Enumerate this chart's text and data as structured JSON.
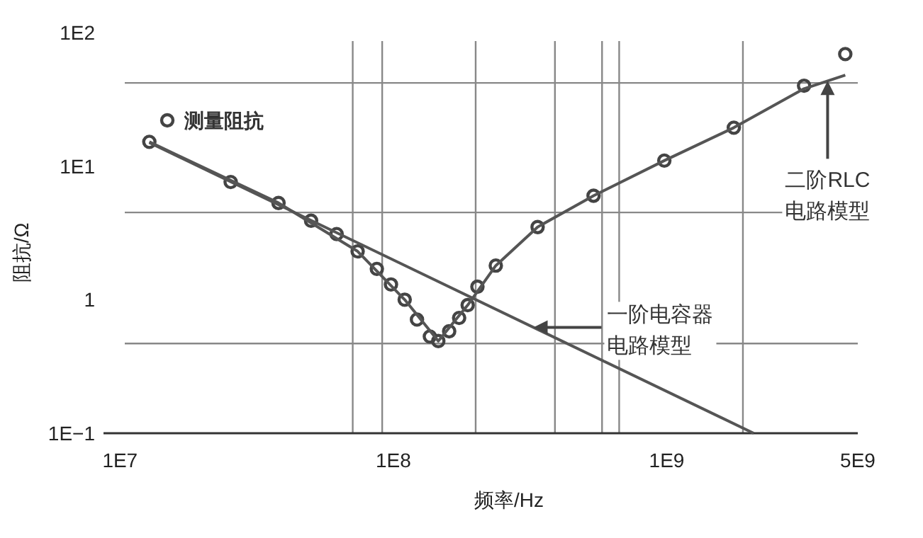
{
  "chart_data": {
    "type": "scatter",
    "xlabel": "频率/Hz",
    "ylabel": "阻抗/Ω",
    "log": "xy",
    "xlim": [
      8700000,
      5000000000
    ],
    "xticks": [
      {
        "value": 10000000,
        "label": "1E7"
      },
      {
        "value": 100000000,
        "label": "1E8"
      },
      {
        "value": 1000000000,
        "label": "1E9"
      },
      {
        "value": 5000000000,
        "label": "5E9"
      }
    ],
    "ylim": [
      0.1,
      100
    ],
    "yticks": [
      {
        "value": 100,
        "label": "1E2"
      },
      {
        "value": 10,
        "label": "1E1"
      },
      {
        "value": 1,
        "label": "1"
      },
      {
        "value": 0.1,
        "label": "1E−1"
      }
    ],
    "grid": false,
    "legend": "top left",
    "series": [
      {
        "name": "测量阻抗",
        "marker": "circle",
        "color": "#444444",
        "x": [
          12800000,
          25400000,
          38000000,
          50000000,
          62000000,
          74000000,
          87000000,
          98000000,
          110000000,
          122000000,
          136000000,
          146000000,
          160000000,
          174000000,
          187000000,
          203000000,
          237000000,
          337000000,
          540000000,
          980000000,
          1760000000,
          3180000000,
          4500000000
        ],
        "values": [
          15.2,
          7.6,
          5.3,
          3.9,
          3.1,
          2.3,
          1.7,
          1.3,
          1.0,
          0.71,
          0.53,
          0.49,
          0.58,
          0.73,
          0.91,
          1.25,
          1.8,
          3.5,
          6.0,
          11,
          19.4,
          40,
          69
        ]
      },
      {
        "type": "line",
        "color": "#555555",
        "x": [
          12800000,
          2080000000
        ],
        "values": [
          15,
          0.1
        ]
      },
      {
        "type": "line",
        "color": "#555555",
        "x": [
          12800000,
          38000000,
          74000000,
          110000000,
          146000000,
          187000000,
          237000000,
          337000000,
          540000000,
          980000000,
          1760000000,
          3180000000,
          4500000000
        ],
        "values": [
          15.2,
          5.3,
          2.3,
          1.0,
          0.49,
          0.91,
          1.8,
          3.5,
          6.0,
          11,
          19.4,
          38,
          48
        ]
      }
    ],
    "ref_lines": [
      {
        "axis": "x",
        "value": 71000000,
        "color": "#888888"
      },
      {
        "axis": "x",
        "value": 91000000,
        "color": "#888888"
      },
      {
        "axis": "x",
        "value": 200000000,
        "color": "#888888"
      },
      {
        "axis": "x",
        "value": 390000000,
        "color": "#888888"
      },
      {
        "axis": "x",
        "value": 580000000,
        "color": "#888888"
      },
      {
        "axis": "x",
        "value": 670000000,
        "color": "#888888"
      },
      {
        "axis": "x",
        "value": 1900000000,
        "color": "#888888"
      },
      {
        "axis": "y",
        "value": 42,
        "color": "#888888"
      },
      {
        "axis": "y",
        "value": 4.5,
        "color": "#888888"
      },
      {
        "axis": "y",
        "value": 0.47,
        "color": "#888888"
      }
    ],
    "annotations": [
      "二阶RLC电路模型",
      "一阶电容器电路模型"
    ]
  }
}
